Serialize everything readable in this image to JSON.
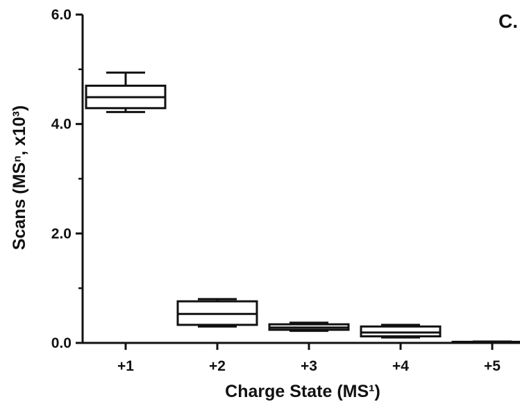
{
  "chart_data": {
    "type": "box",
    "panel_label": "C.",
    "xlabel": "Charge State (MS¹)",
    "ylabel": "Scans (MSⁿ, x10³)",
    "ylim": [
      0,
      6.0
    ],
    "y_ticks": [
      "0.0",
      "2.0",
      "4.0",
      "6.0"
    ],
    "y_tick_values": [
      0,
      2.0,
      4.0,
      6.0
    ],
    "y_minor_ticks": [
      1.0,
      3.0,
      5.0
    ],
    "categories": [
      "+1",
      "+2",
      "+3",
      "+4",
      "+5"
    ],
    "boxes": [
      {
        "category": "+1",
        "min": 4.22,
        "q1": 4.29,
        "median": 4.49,
        "q3": 4.7,
        "max": 4.94
      },
      {
        "category": "+2",
        "min": 0.3,
        "q1": 0.33,
        "median": 0.53,
        "q3": 0.76,
        "max": 0.8
      },
      {
        "category": "+3",
        "min": 0.22,
        "q1": 0.24,
        "median": 0.28,
        "q3": 0.34,
        "max": 0.37
      },
      {
        "category": "+4",
        "min": 0.1,
        "q1": 0.12,
        "median": 0.19,
        "q3": 0.3,
        "max": 0.33
      },
      {
        "category": "+5",
        "min": 0.005,
        "q1": 0.01,
        "median": 0.015,
        "q3": 0.02,
        "max": 0.025
      }
    ],
    "grid": false,
    "legend": "none",
    "colors": {
      "stroke": "#111111",
      "fill": "#ffffff"
    }
  }
}
